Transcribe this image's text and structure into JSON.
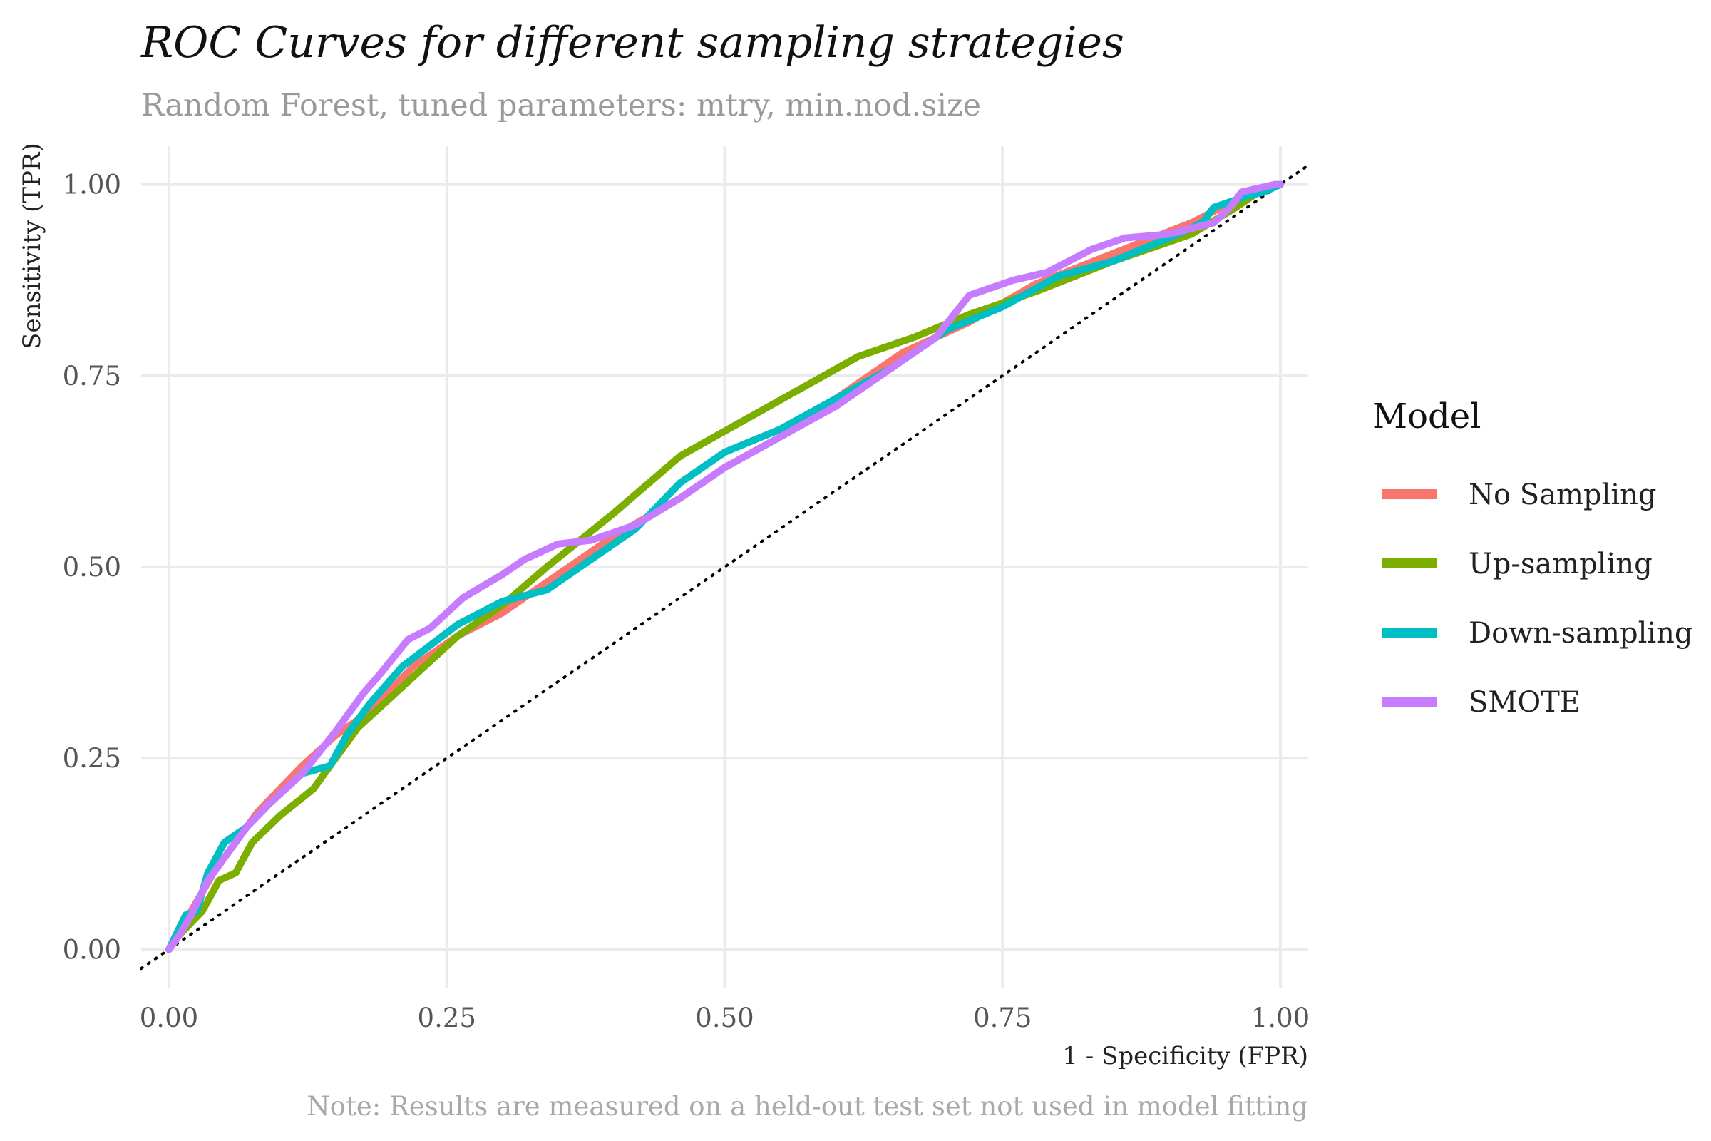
{
  "chart_data": {
    "type": "line",
    "title": "ROC Curves for different sampling strategies",
    "subtitle": "Random Forest, tuned parameters: mtry, min.nod.size",
    "xlabel": "1 - Specificity (FPR)",
    "ylabel": "Sensitivity (TPR)",
    "caption": "Note: Results are measured on a held-out test set not used in model fitting",
    "xlim": [
      -0.025,
      1.025
    ],
    "ylim": [
      -0.05,
      1.05
    ],
    "x_ticks": [
      "0.00",
      "0.25",
      "0.50",
      "0.75",
      "1.00"
    ],
    "y_ticks": [
      "0.00",
      "0.25",
      "0.50",
      "0.75",
      "1.00"
    ],
    "grid": true,
    "reference_line": "diagonal dotted",
    "legend": {
      "title": "Model",
      "position": "right"
    },
    "series": [
      {
        "name": "No Sampling",
        "color": "#F8766D",
        "points": [
          [
            0,
            0
          ],
          [
            0.01,
            0.02
          ],
          [
            0.02,
            0.05
          ],
          [
            0.04,
            0.1
          ],
          [
            0.06,
            0.14
          ],
          [
            0.08,
            0.18
          ],
          [
            0.12,
            0.24
          ],
          [
            0.15,
            0.28
          ],
          [
            0.18,
            0.31
          ],
          [
            0.22,
            0.37
          ],
          [
            0.26,
            0.41
          ],
          [
            0.3,
            0.44
          ],
          [
            0.35,
            0.49
          ],
          [
            0.4,
            0.54
          ],
          [
            0.46,
            0.59
          ],
          [
            0.5,
            0.63
          ],
          [
            0.55,
            0.67
          ],
          [
            0.6,
            0.72
          ],
          [
            0.66,
            0.78
          ],
          [
            0.72,
            0.82
          ],
          [
            0.78,
            0.87
          ],
          [
            0.85,
            0.91
          ],
          [
            0.92,
            0.95
          ],
          [
            0.96,
            0.98
          ],
          [
            1.0,
            1.0
          ]
        ]
      },
      {
        "name": "Up-sampling",
        "color": "#7CAE00",
        "points": [
          [
            0,
            0
          ],
          [
            0.01,
            0.02
          ],
          [
            0.03,
            0.05
          ],
          [
            0.045,
            0.09
          ],
          [
            0.06,
            0.1
          ],
          [
            0.075,
            0.14
          ],
          [
            0.1,
            0.175
          ],
          [
            0.13,
            0.21
          ],
          [
            0.15,
            0.25
          ],
          [
            0.17,
            0.29
          ],
          [
            0.2,
            0.33
          ],
          [
            0.23,
            0.37
          ],
          [
            0.26,
            0.41
          ],
          [
            0.3,
            0.45
          ],
          [
            0.34,
            0.5
          ],
          [
            0.4,
            0.57
          ],
          [
            0.46,
            0.645
          ],
          [
            0.54,
            0.71
          ],
          [
            0.62,
            0.775
          ],
          [
            0.67,
            0.8
          ],
          [
            0.72,
            0.83
          ],
          [
            0.78,
            0.86
          ],
          [
            0.85,
            0.9
          ],
          [
            0.92,
            0.935
          ],
          [
            0.96,
            0.97
          ],
          [
            0.98,
            0.99
          ],
          [
            1.0,
            1.0
          ]
        ]
      },
      {
        "name": "Down-sampling",
        "color": "#00BFC4",
        "points": [
          [
            0,
            0
          ],
          [
            0.015,
            0.045
          ],
          [
            0.025,
            0.05
          ],
          [
            0.035,
            0.1
          ],
          [
            0.05,
            0.14
          ],
          [
            0.07,
            0.16
          ],
          [
            0.09,
            0.19
          ],
          [
            0.12,
            0.23
          ],
          [
            0.145,
            0.24
          ],
          [
            0.16,
            0.28
          ],
          [
            0.18,
            0.32
          ],
          [
            0.21,
            0.37
          ],
          [
            0.26,
            0.425
          ],
          [
            0.3,
            0.455
          ],
          [
            0.34,
            0.47
          ],
          [
            0.38,
            0.51
          ],
          [
            0.42,
            0.55
          ],
          [
            0.46,
            0.61
          ],
          [
            0.5,
            0.65
          ],
          [
            0.55,
            0.68
          ],
          [
            0.6,
            0.72
          ],
          [
            0.65,
            0.76
          ],
          [
            0.7,
            0.81
          ],
          [
            0.75,
            0.84
          ],
          [
            0.8,
            0.88
          ],
          [
            0.85,
            0.9
          ],
          [
            0.9,
            0.93
          ],
          [
            0.93,
            0.95
          ],
          [
            0.94,
            0.97
          ],
          [
            0.97,
            0.985
          ],
          [
            0.985,
            0.99
          ],
          [
            1.0,
            1.0
          ]
        ]
      },
      {
        "name": "SMOTE",
        "color": "#C77CFF",
        "points": [
          [
            0,
            0
          ],
          [
            0.01,
            0.02
          ],
          [
            0.02,
            0.045
          ],
          [
            0.035,
            0.09
          ],
          [
            0.05,
            0.12
          ],
          [
            0.07,
            0.16
          ],
          [
            0.09,
            0.19
          ],
          [
            0.12,
            0.23
          ],
          [
            0.15,
            0.285
          ],
          [
            0.175,
            0.335
          ],
          [
            0.19,
            0.36
          ],
          [
            0.215,
            0.405
          ],
          [
            0.235,
            0.42
          ],
          [
            0.265,
            0.46
          ],
          [
            0.3,
            0.49
          ],
          [
            0.32,
            0.51
          ],
          [
            0.35,
            0.53
          ],
          [
            0.38,
            0.535
          ],
          [
            0.42,
            0.555
          ],
          [
            0.46,
            0.59
          ],
          [
            0.5,
            0.63
          ],
          [
            0.55,
            0.67
          ],
          [
            0.6,
            0.71
          ],
          [
            0.65,
            0.76
          ],
          [
            0.69,
            0.8
          ],
          [
            0.72,
            0.855
          ],
          [
            0.76,
            0.875
          ],
          [
            0.79,
            0.885
          ],
          [
            0.83,
            0.915
          ],
          [
            0.86,
            0.93
          ],
          [
            0.9,
            0.935
          ],
          [
            0.94,
            0.95
          ],
          [
            0.955,
            0.97
          ],
          [
            0.965,
            0.99
          ],
          [
            0.98,
            0.995
          ],
          [
            0.995,
            1.0
          ],
          [
            1.0,
            1.0
          ]
        ]
      }
    ]
  }
}
